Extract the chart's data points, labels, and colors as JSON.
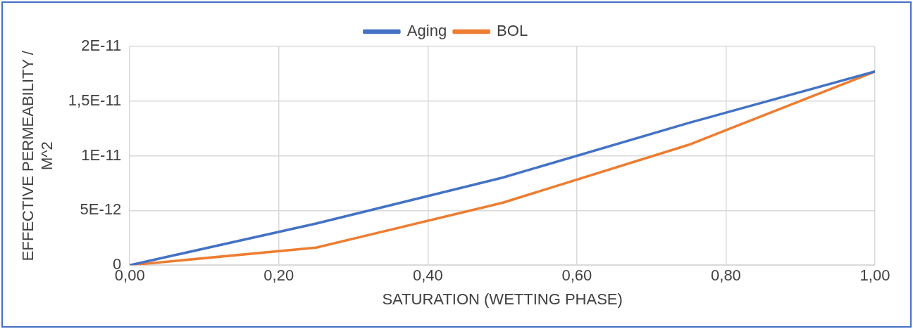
{
  "chart_data": {
    "type": "line",
    "xlabel": "SATURATION (WETTING PHASE)",
    "ylabel": "EFFECTIVE PERMEABILITY / M^2",
    "x": [
      0,
      0.25,
      0.5,
      0.75,
      1
    ],
    "series": [
      {
        "name": "Aging",
        "color": "#4472c4",
        "values": [
          0,
          3.8e-12,
          8e-12,
          1.3e-11,
          1.77e-11
        ]
      },
      {
        "name": "BOL",
        "color": "#ed7d31",
        "values": [
          0,
          1.6e-12,
          5.7e-12,
          1.1e-11,
          1.77e-11
        ]
      }
    ],
    "xlim": [
      0,
      1
    ],
    "xticks": [
      {
        "value": 0,
        "label": "0,00"
      },
      {
        "value": 0.2,
        "label": "0,20"
      },
      {
        "value": 0.4,
        "label": "0,40"
      },
      {
        "value": 0.6,
        "label": "0,60"
      },
      {
        "value": 0.8,
        "label": "0,80"
      },
      {
        "value": 1,
        "label": "1,00"
      }
    ],
    "ylim": [
      0,
      2e-11
    ],
    "yticks": [
      {
        "value": 0,
        "label": "0"
      },
      {
        "value": 5e-12,
        "label": "5E-12"
      },
      {
        "value": 1e-11,
        "label": "1E-11"
      },
      {
        "value": 1.5e-11,
        "label": "1,5E-11"
      },
      {
        "value": 2e-11,
        "label": "2E-11"
      }
    ],
    "grid": true,
    "legend": "top",
    "marker": "none",
    "line_style": "solid"
  }
}
